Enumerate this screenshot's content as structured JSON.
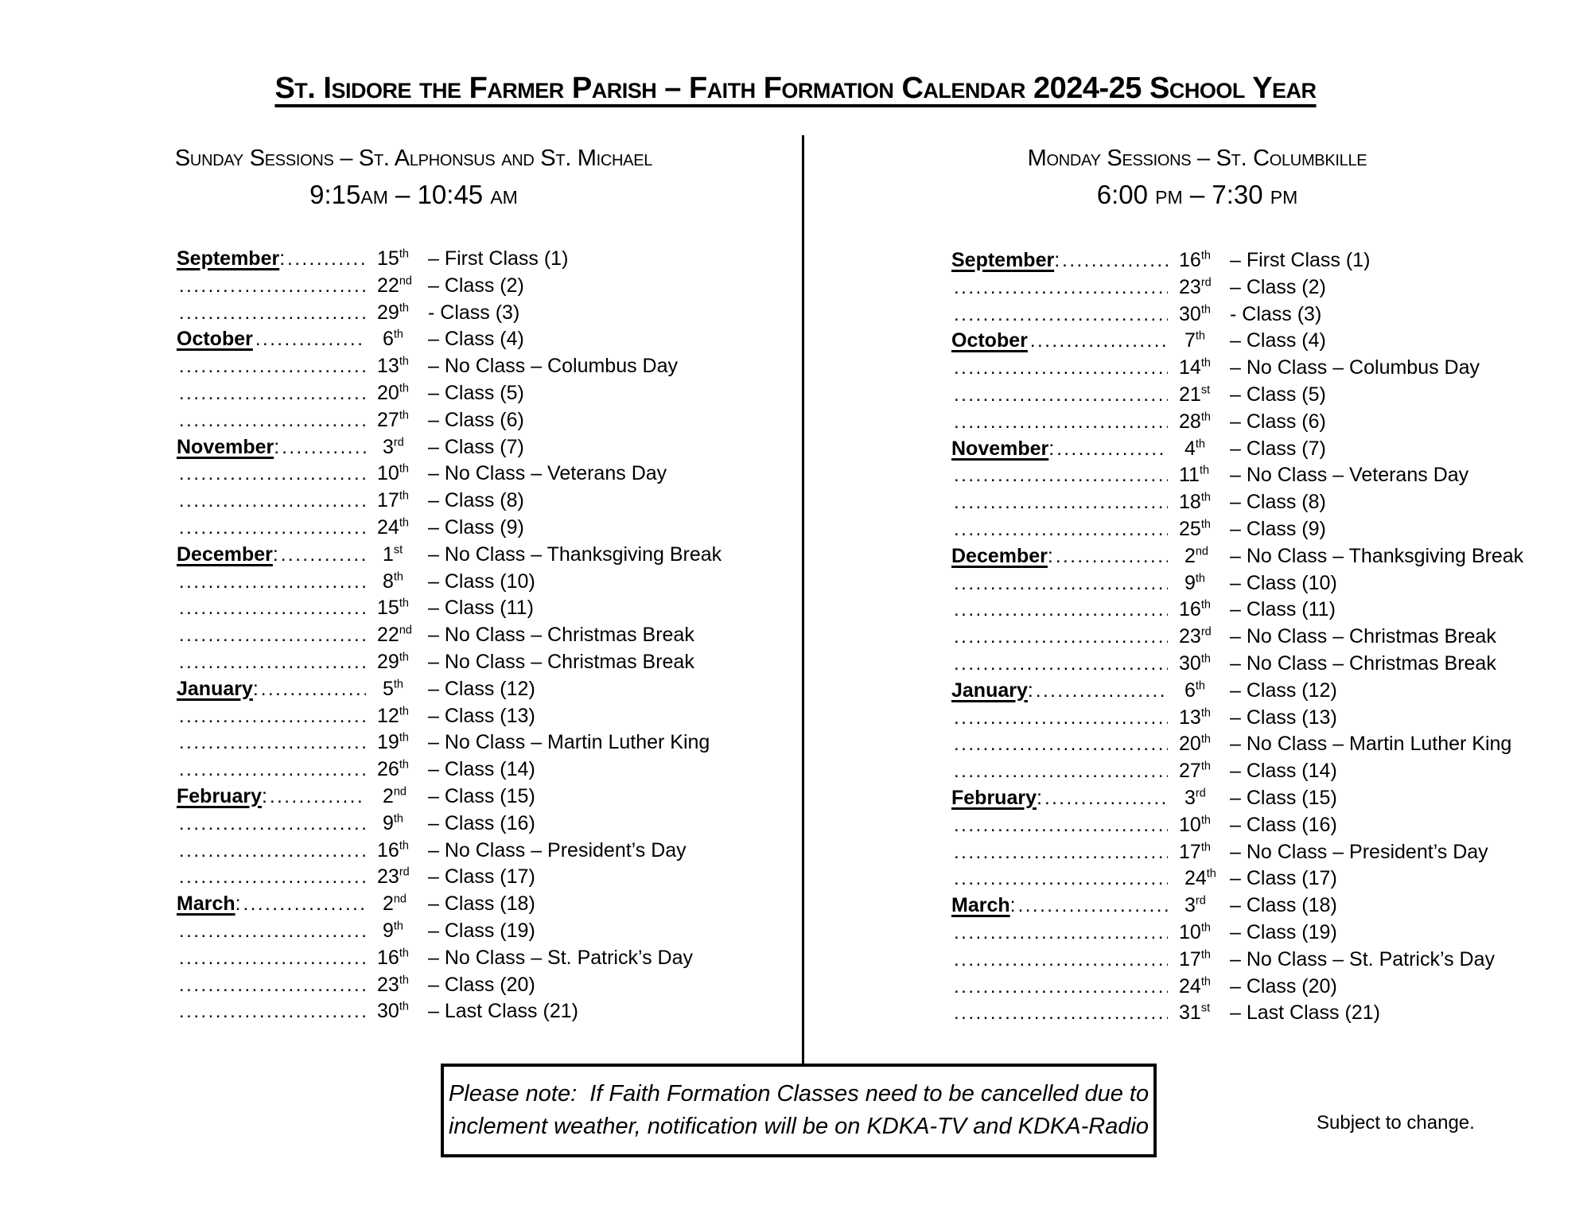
{
  "title": "St. Isidore the Farmer Parish – Faith Formation Calendar 2024-25 School Year",
  "columns": [
    {
      "header": "Sunday Sessions – St. Alphonsus and St. Michael",
      "time": "9:15am – 10:45 am",
      "rows": [
        {
          "month": "September",
          "colon": ":",
          "day": "15",
          "suffix": "th",
          "text": "– First Class (1)"
        },
        {
          "month": "",
          "colon": "",
          "day": "22",
          "suffix": "nd",
          "text": "– Class (2)"
        },
        {
          "month": "",
          "colon": "",
          "day": "29",
          "suffix": "th",
          "text": "- Class (3)"
        },
        {
          "month": "October",
          "colon": "",
          "day": " 6",
          "suffix": "th",
          "text": "– Class (4)"
        },
        {
          "month": "",
          "colon": "",
          "day": "13",
          "suffix": "th",
          "text": "– No Class – Columbus Day"
        },
        {
          "month": "",
          "colon": "",
          "day": "20",
          "suffix": "th",
          "text": "– Class (5)"
        },
        {
          "month": "",
          "colon": "",
          "day": "27",
          "suffix": "th",
          "text": "– Class (6)"
        },
        {
          "month": "November",
          "colon": ":",
          "day": " 3",
          "suffix": "rd",
          "text": "– Class (7)"
        },
        {
          "month": "",
          "colon": "",
          "day": "10",
          "suffix": "th",
          "text": "– No Class – Veterans Day"
        },
        {
          "month": "",
          "colon": "",
          "day": "17",
          "suffix": "th",
          "text": "– Class (8)"
        },
        {
          "month": "",
          "colon": "",
          "day": "24",
          "suffix": "th",
          "text": "– Class (9)"
        },
        {
          "month": "December",
          "colon": ":",
          "day": " 1",
          "suffix": "st",
          "text": "– No Class – Thanksgiving Break"
        },
        {
          "month": "",
          "colon": "",
          "day": " 8",
          "suffix": "th",
          "text": "– Class (10)"
        },
        {
          "month": "",
          "colon": "",
          "day": "15",
          "suffix": "th",
          "text": "– Class (11)"
        },
        {
          "month": "",
          "colon": "",
          "day": "22",
          "suffix": "nd",
          "text": "– No Class – Christmas Break"
        },
        {
          "month": "",
          "colon": "",
          "day": "29",
          "suffix": "th",
          "text": "– No Class – Christmas Break"
        },
        {
          "month": "January",
          "colon": ":",
          "day": " 5",
          "suffix": "th",
          "text": "– Class (12)"
        },
        {
          "month": "",
          "colon": "",
          "day": "12",
          "suffix": "th",
          "text": "– Class (13)"
        },
        {
          "month": "",
          "colon": "",
          "day": "19",
          "suffix": "th",
          "text": "– No Class – Martin Luther King"
        },
        {
          "month": "",
          "colon": "",
          "day": "26",
          "suffix": "th",
          "text": "– Class (14)"
        },
        {
          "month": "February",
          "colon": ":",
          "day": " 2",
          "suffix": "nd",
          "text": "– Class (15)"
        },
        {
          "month": "",
          "colon": "",
          "day": " 9",
          "suffix": "th",
          "text": "– Class (16)"
        },
        {
          "month": "",
          "colon": "",
          "day": "16",
          "suffix": "th",
          "text": "– No Class – President’s Day"
        },
        {
          "month": "",
          "colon": "",
          "day": "23",
          "suffix": "rd",
          "text": "– Class (17)"
        },
        {
          "month": "March",
          "colon": ":",
          "day": " 2",
          "suffix": "nd",
          "text": "– Class (18)"
        },
        {
          "month": "",
          "colon": "",
          "day": " 9",
          "suffix": "th",
          "text": "– Class (19)"
        },
        {
          "month": "",
          "colon": "",
          "day": "16",
          "suffix": "th",
          "text": "– No Class – St. Patrick’s Day"
        },
        {
          "month": "",
          "colon": "",
          "day": "23",
          "suffix": "th",
          "text": "– Class (20)"
        },
        {
          "month": "",
          "colon": "",
          "day": "30",
          "suffix": "th",
          "text": "– Last Class (21)"
        }
      ]
    },
    {
      "header": "Monday Sessions – St. Columbkille",
      "time": "6:00 pm – 7:30 pm",
      "rows": [
        {
          "month": "September",
          "colon": ":",
          "day": "16",
          "suffix": "th",
          "text": "– First Class (1)"
        },
        {
          "month": "",
          "colon": "",
          "day": "23",
          "suffix": "rd",
          "text": "– Class (2)"
        },
        {
          "month": "",
          "colon": "",
          "day": "30",
          "suffix": "th",
          "text": "- Class (3)"
        },
        {
          "month": "October",
          "colon": "",
          "day": " 7",
          "suffix": "th",
          "text": "– Class (4)"
        },
        {
          "month": "",
          "colon": "",
          "day": "14",
          "suffix": "th",
          "text": "– No Class – Columbus Day"
        },
        {
          "month": "",
          "colon": "",
          "day": "21",
          "suffix": "st",
          "text": "– Class (5)"
        },
        {
          "month": "",
          "colon": "",
          "day": "28",
          "suffix": "th",
          "text": "– Class (6)"
        },
        {
          "month": "November",
          "colon": ":",
          "day": " 4",
          "suffix": "th",
          "text": "– Class (7)"
        },
        {
          "month": "",
          "colon": "",
          "day": "11",
          "suffix": "th",
          "text": "– No Class – Veterans Day"
        },
        {
          "month": "",
          "colon": "",
          "day": "18",
          "suffix": "th",
          "text": "– Class (8)"
        },
        {
          "month": "",
          "colon": "",
          "day": "25",
          "suffix": "th",
          "text": "– Class (9)"
        },
        {
          "month": "December",
          "colon": ":",
          "day": " 2",
          "suffix": "nd",
          "text": "– No Class – Thanksgiving Break"
        },
        {
          "month": "",
          "colon": "",
          "day": " 9",
          "suffix": "th",
          "text": "– Class (10)"
        },
        {
          "month": "",
          "colon": "",
          "day": "16",
          "suffix": "th",
          "text": "– Class (11)"
        },
        {
          "month": "",
          "colon": "",
          "day": "23",
          "suffix": "rd",
          "text": "– No Class – Christmas Break"
        },
        {
          "month": "",
          "colon": "",
          "day": "30",
          "suffix": "th",
          "text": "– No Class – Christmas Break"
        },
        {
          "month": "January",
          "colon": ":",
          "day": " 6",
          "suffix": "th",
          "text": "– Class (12)"
        },
        {
          "month": "",
          "colon": "",
          "day": "13",
          "suffix": "th",
          "text": "– Class (13)"
        },
        {
          "month": "",
          "colon": "",
          "day": "20",
          "suffix": "th",
          "text": "– No Class – Martin Luther King"
        },
        {
          "month": "",
          "colon": "",
          "day": "27",
          "suffix": "th",
          "text": "– Class (14)"
        },
        {
          "month": "February",
          "colon": ":",
          "day": " 3",
          "suffix": "rd",
          "text": "– Class (15)"
        },
        {
          "month": "",
          "colon": "",
          "day": "10",
          "suffix": "th",
          "text": "– Class (16)"
        },
        {
          "month": "",
          "colon": "",
          "day": "17",
          "suffix": "th",
          "text": "– No Class – President’s Day"
        },
        {
          "month": "",
          "colon": "",
          "day": " 24",
          "suffix": "th",
          "text": "– Class (17)"
        },
        {
          "month": "March",
          "colon": ":",
          "day": " 3",
          "suffix": "rd",
          "text": "– Class (18)"
        },
        {
          "month": "",
          "colon": "",
          "day": "10",
          "suffix": "th",
          "text": "– Class (19)"
        },
        {
          "month": "",
          "colon": "",
          "day": "17",
          "suffix": "th",
          "text": "– No Class – St. Patrick’s Day"
        },
        {
          "month": "",
          "colon": "",
          "day": "24",
          "suffix": "th",
          "text": "– Class (20)"
        },
        {
          "month": "",
          "colon": "",
          "day": "31",
          "suffix": "st",
          "text": "– Last Class (21)"
        }
      ]
    }
  ],
  "note": {
    "line1": "Please note:  If Faith Formation Classes need to be cancelled due to",
    "line2": "inclement weather, notification will be on KDKA-TV and KDKA-Radio"
  },
  "footnote": "Subject to change."
}
